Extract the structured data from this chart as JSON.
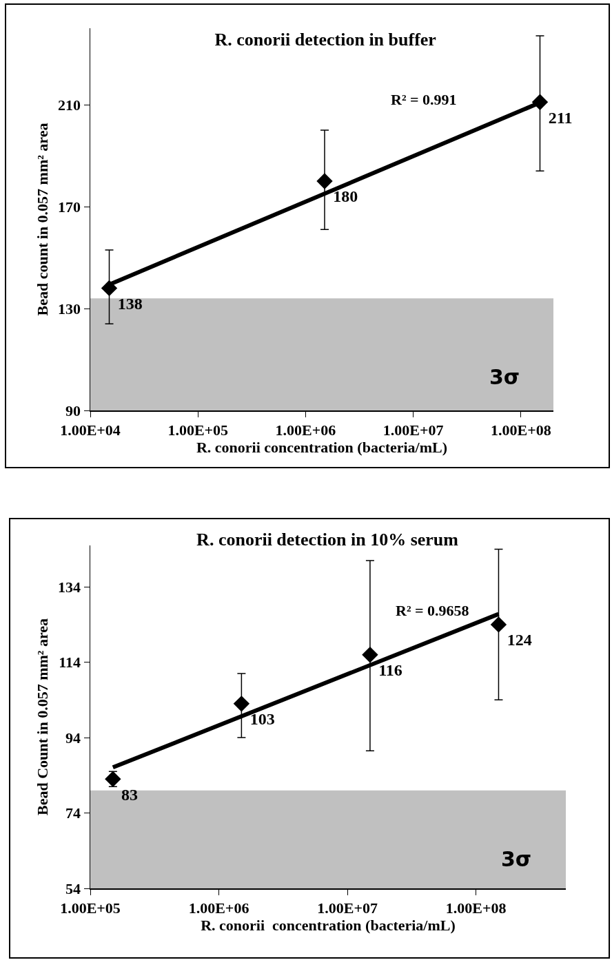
{
  "chart_data": [
    {
      "type": "scatter",
      "title": "R. conorii detection in buffer",
      "xlabel": "R. conorii concentration (bacteria/mL)",
      "ylabel": "Bead count in 0.057 mm² area",
      "log": "x",
      "grid": false,
      "xlim": [
        10000,
        200000000
      ],
      "ylim": [
        90,
        240
      ],
      "xticks": [
        {
          "value": 10000,
          "label": "1.00E+04"
        },
        {
          "value": 100000,
          "label": "1.00E+05"
        },
        {
          "value": 1000000,
          "label": "1.00E+06"
        },
        {
          "value": 10000000,
          "label": "1.00E+07"
        },
        {
          "value": 100000000,
          "label": "1.00E+08"
        }
      ],
      "yticks": [
        90,
        130,
        170,
        210
      ],
      "series": [
        {
          "marker": "diamond",
          "color": "#000000",
          "x": [
            15000,
            1500000,
            150000000
          ],
          "values": [
            138,
            180,
            211
          ],
          "errors": [
            [
              124,
              153
            ],
            [
              161,
              200
            ],
            [
              184,
              237
            ]
          ],
          "value_labels": [
            "138",
            "180",
            "211"
          ]
        },
        {
          "type": "line",
          "marker": "none",
          "color": "#000000",
          "line_style": "solid",
          "x": [
            15000,
            150000000
          ],
          "values": [
            139.4,
            210.8
          ]
        }
      ],
      "bands": [
        {
          "axis": "y",
          "from": 90,
          "to": 134,
          "label": "3σ",
          "color": "#c0c0c0"
        }
      ],
      "annotations": [
        "R² = 0.991"
      ]
    },
    {
      "type": "scatter",
      "title": "R. conorii detection in 10% serum",
      "xlabel": "R. conorii  concentration (bacteria/mL)",
      "ylabel": "Bead Count in 0.057 mm² area",
      "log": "x",
      "grid": false,
      "xlim": [
        100000,
        500000000
      ],
      "ylim": [
        54,
        145
      ],
      "xticks": [
        {
          "value": 100000,
          "label": "1.00E+05"
        },
        {
          "value": 1000000,
          "label": "1.00E+06"
        },
        {
          "value": 10000000,
          "label": "1.00E+07"
        },
        {
          "value": 100000000,
          "label": "1.00E+08"
        }
      ],
      "yticks": [
        54,
        74,
        94,
        114,
        134
      ],
      "series": [
        {
          "marker": "diamond",
          "color": "#000000",
          "x": [
            150000,
            1500000,
            15000000,
            150000000
          ],
          "values": [
            83,
            103,
            116,
            124
          ],
          "errors": [
            [
              81,
              85
            ],
            [
              94,
              111
            ],
            [
              90.5,
              141
            ],
            [
              104,
              144
            ]
          ],
          "value_labels": [
            "83",
            "103",
            "116",
            "124"
          ]
        },
        {
          "type": "line",
          "marker": "none",
          "color": "#000000",
          "line_style": "solid",
          "x": [
            150000,
            150000000
          ],
          "values": [
            86.1,
            126.8
          ]
        }
      ],
      "bands": [
        {
          "axis": "y",
          "from": 54,
          "to": 80,
          "label": "3σ",
          "color": "#c0c0c0"
        }
      ],
      "annotations": [
        "R² = 0.9658"
      ]
    }
  ]
}
